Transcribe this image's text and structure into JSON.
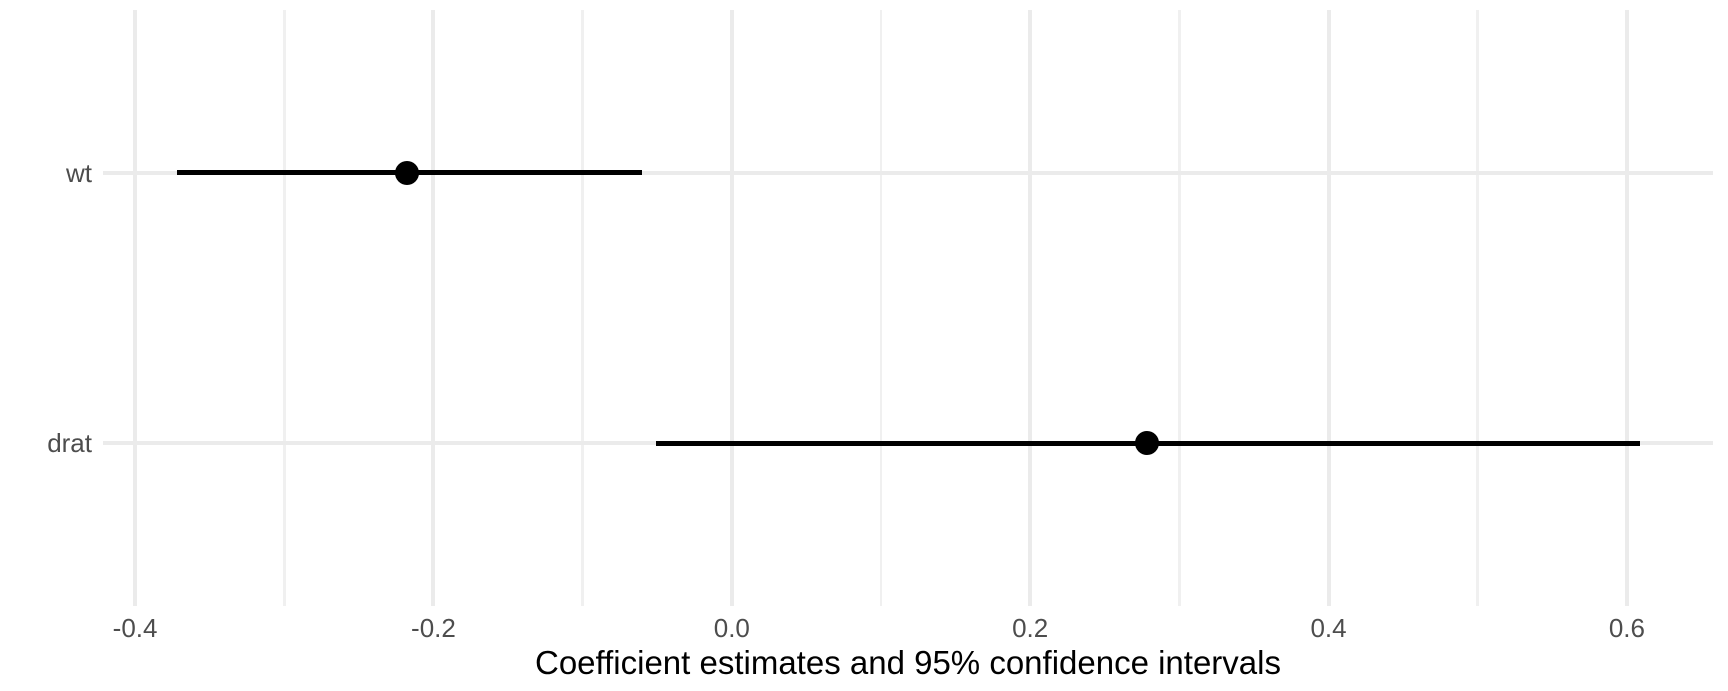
{
  "chart_data": {
    "type": "pointrange",
    "orientation": "horizontal",
    "title": "",
    "xlabel": "Coefficient estimates and 95% confidence intervals",
    "ylabel": "",
    "categories": [
      "wt",
      "drat"
    ],
    "series": [
      {
        "name": "wt",
        "estimate": -0.218,
        "ci_lower": -0.372,
        "ci_upper": -0.06
      },
      {
        "name": "drat",
        "estimate": 0.278,
        "ci_lower": -0.051,
        "ci_upper": 0.609
      }
    ],
    "confidence_level": "95%",
    "xlim": [
      -0.4215,
      0.6577
    ],
    "x_major_ticks": [
      -0.4,
      -0.2,
      0.0,
      0.2,
      0.4,
      0.6
    ],
    "x_major_labels": [
      "-0.4",
      "-0.2",
      "0.0",
      "0.2",
      "0.4",
      "0.6"
    ],
    "x_minor_ticks": [
      -0.3,
      -0.1,
      0.1,
      0.3,
      0.5
    ],
    "grid": true,
    "legend": false,
    "colors": {
      "point": "#000000",
      "range_line": "#000000",
      "grid_major": "#EBEBEB",
      "grid_minor": "#F0F0F0",
      "axis_text": "#4D4D4D",
      "axis_title": "#000000",
      "background": "#FFFFFF"
    }
  }
}
